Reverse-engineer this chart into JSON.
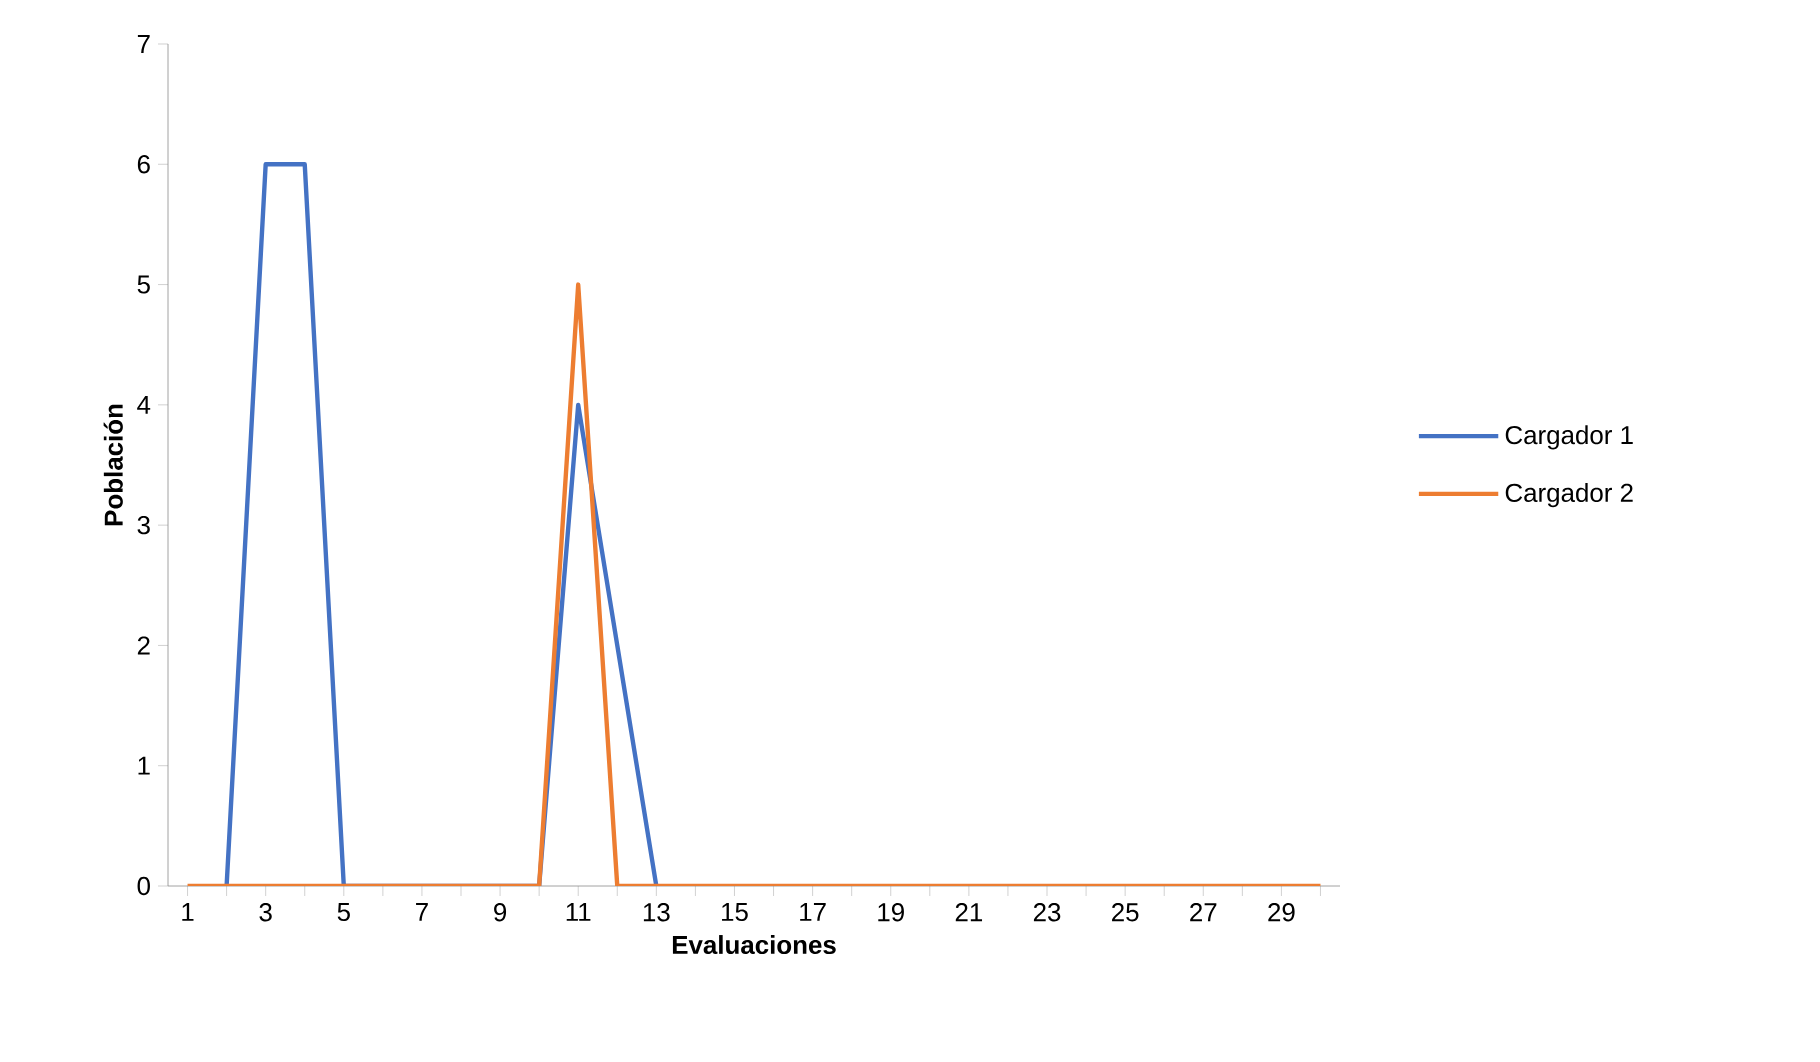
{
  "chart_data": {
    "type": "line",
    "xlabel": "Evaluaciones",
    "ylabel": "Población",
    "categories": [
      "1",
      null,
      "3",
      null,
      "5",
      null,
      "7",
      null,
      "9",
      null,
      "11",
      null,
      "13",
      null,
      "15",
      null,
      "17",
      null,
      "19",
      null,
      "21",
      null,
      "23",
      null,
      "25",
      null,
      "27",
      null,
      "29",
      null
    ],
    "series": [
      {
        "name": "Cargador 1",
        "color": "#4472c4",
        "values": [
          null,
          0,
          6,
          6,
          0,
          null,
          null,
          null,
          null,
          0,
          4,
          2,
          0,
          null,
          null,
          null,
          null,
          null,
          null,
          null,
          null,
          null,
          null,
          null,
          null,
          null,
          null,
          null,
          null,
          null
        ]
      },
      {
        "name": "Cargador 2",
        "color": "#ed7d31",
        "values": [
          0,
          0,
          0,
          0,
          0,
          0,
          0,
          0,
          0,
          0,
          5,
          0,
          0,
          0,
          0,
          0,
          0,
          0,
          0,
          0,
          0,
          0,
          0,
          0,
          0,
          0,
          0,
          0,
          0,
          0
        ]
      }
    ],
    "ylim": [
      0,
      7
    ],
    "yticks": [
      0,
      1,
      2,
      3,
      4,
      5,
      6,
      7
    ],
    "legend": "right"
  }
}
